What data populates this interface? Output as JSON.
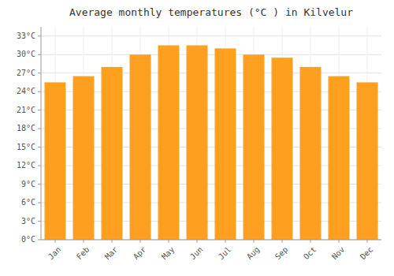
{
  "chart_data": {
    "type": "bar",
    "title": "Average monthly temperatures (°C ) in Kilvelur",
    "categories": [
      "Jan",
      "Feb",
      "Mar",
      "Apr",
      "May",
      "Jun",
      "Jul",
      "Aug",
      "Sep",
      "Oct",
      "Nov",
      "Dec"
    ],
    "values": [
      25.5,
      26.5,
      28.0,
      30.0,
      31.5,
      31.5,
      31.0,
      30.0,
      29.5,
      28.0,
      26.5,
      25.5
    ],
    "color": "#FFA020",
    "ylim": [
      0,
      34.5
    ],
    "yticks": [
      {
        "value": 0,
        "label": "0°C"
      },
      {
        "value": 3,
        "label": "3°C"
      },
      {
        "value": 6,
        "label": "6°C"
      },
      {
        "value": 9,
        "label": "9°C"
      },
      {
        "value": 12,
        "label": "12°C"
      },
      {
        "value": 15,
        "label": "15°C"
      },
      {
        "value": 18,
        "label": "18°C"
      },
      {
        "value": 21,
        "label": "21°C"
      },
      {
        "value": 24,
        "label": "24°C"
      },
      {
        "value": 27,
        "label": "27°C"
      },
      {
        "value": 30,
        "label": "30°C"
      },
      {
        "value": 33,
        "label": "33°C"
      }
    ],
    "grid": true
  }
}
